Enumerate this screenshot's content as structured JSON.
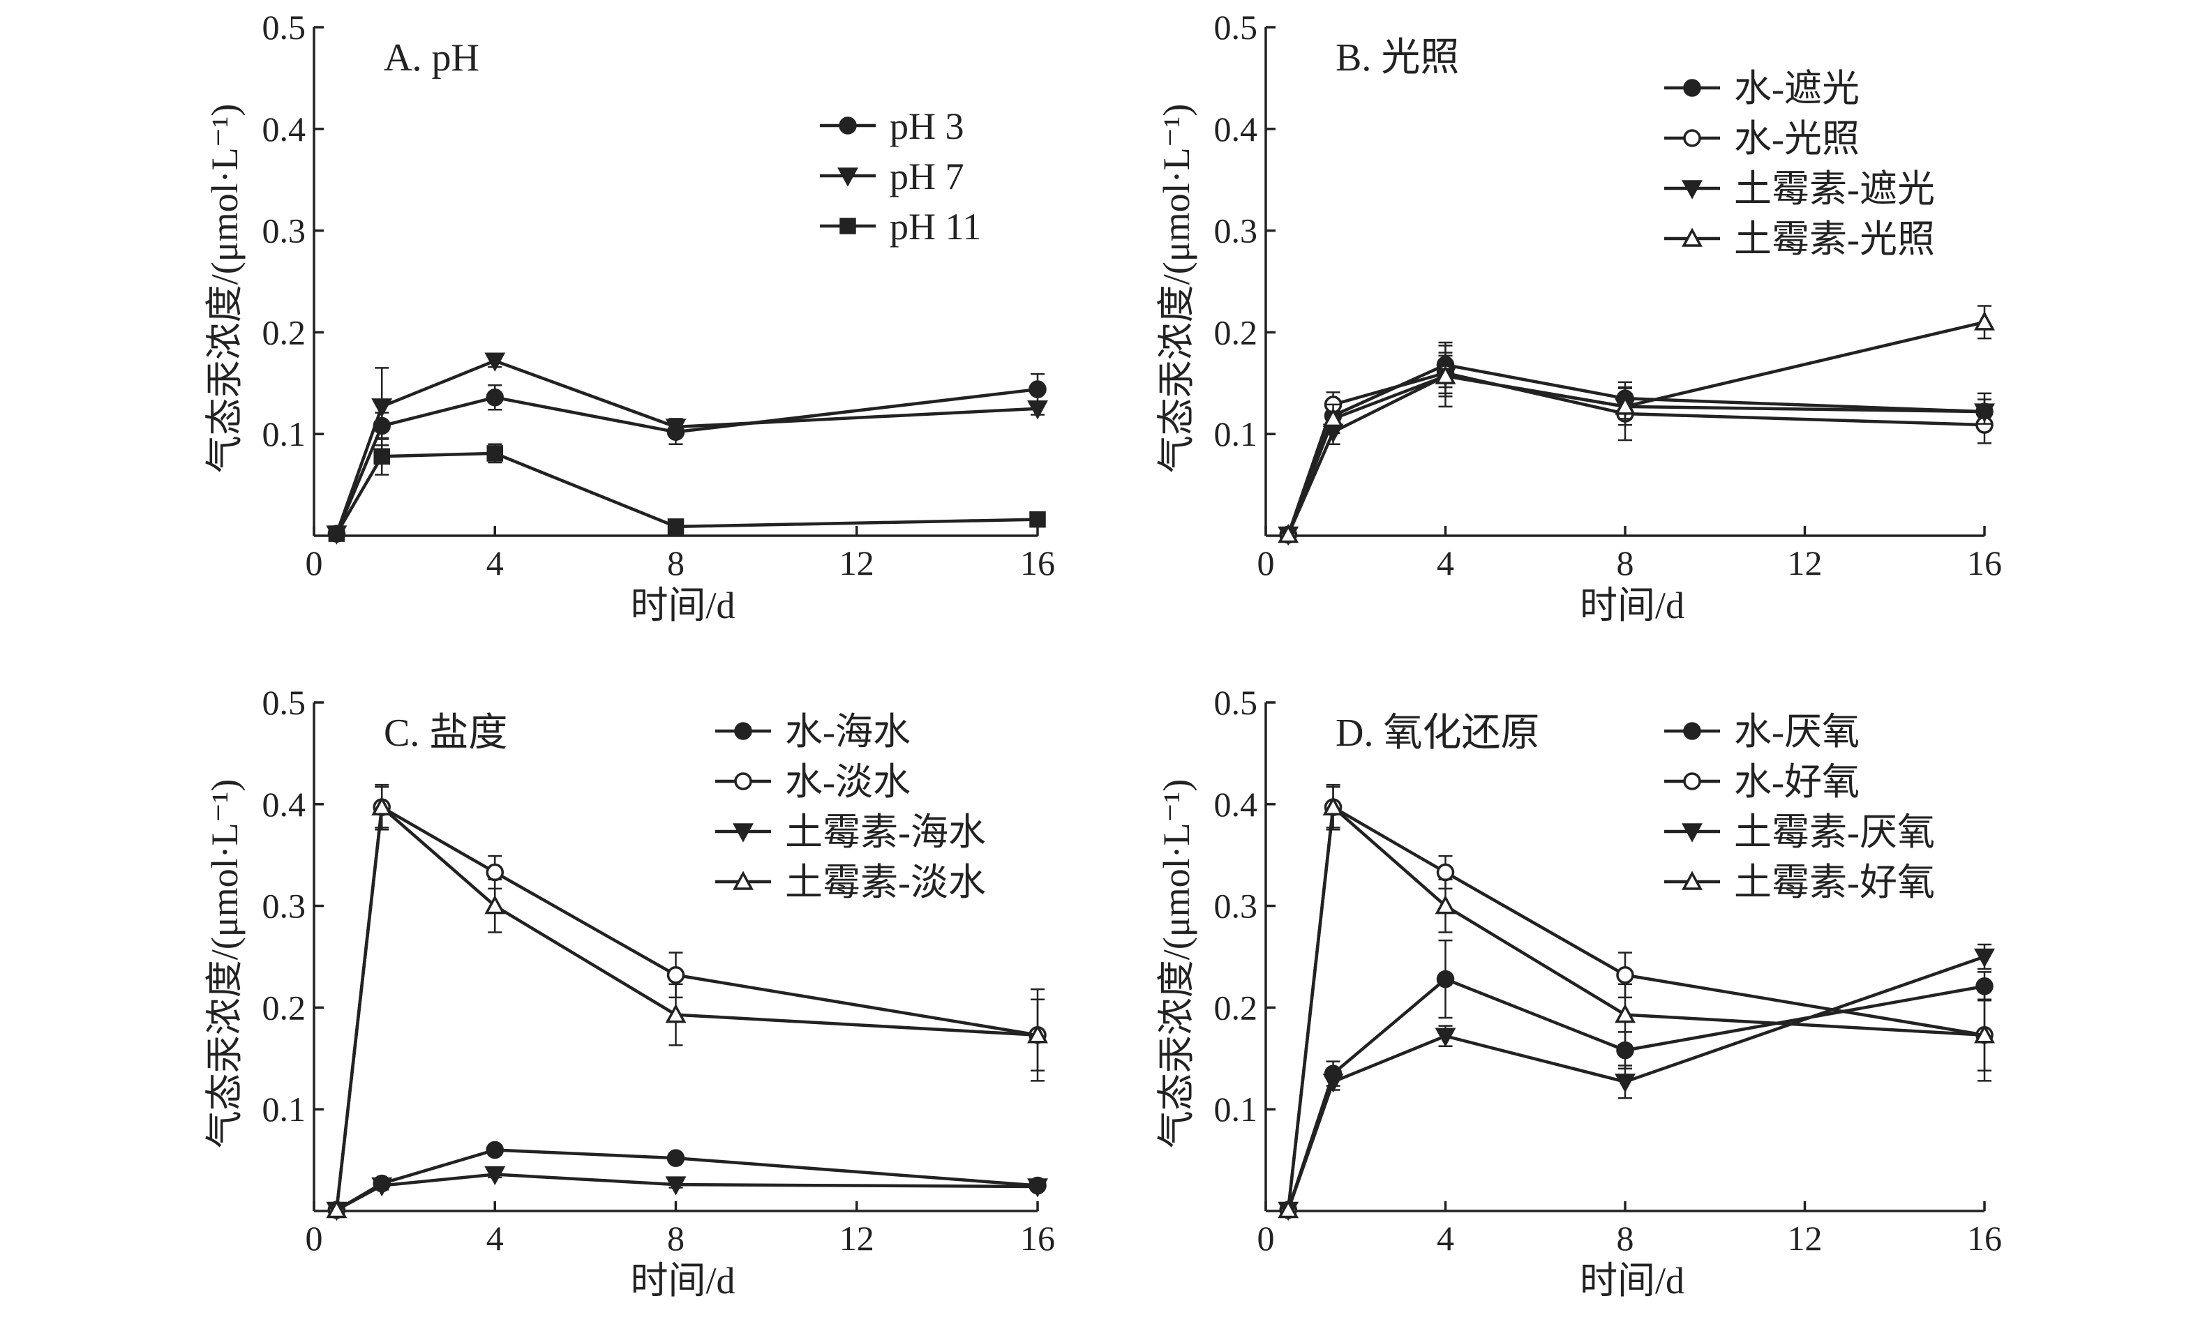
{
  "chart_data": [
    {
      "type": "line",
      "title": "A. pH",
      "xlabel": "时间/d",
      "ylabel": "气态汞浓度/(μmol·L⁻¹)",
      "xlim": [
        0,
        16
      ],
      "ylim": [
        0,
        0.5
      ],
      "xticks": [
        0,
        4,
        8,
        12,
        16
      ],
      "yticks": [
        0.1,
        0.2,
        0.3,
        0.4,
        0.5
      ],
      "legend_position": "top-right",
      "series": [
        {
          "name": "pH 3",
          "marker": "circle-filled",
          "x": [
            0.5,
            1.5,
            4,
            8,
            16
          ],
          "y": [
            0.002,
            0.108,
            0.136,
            0.102,
            0.144
          ],
          "err": [
            0,
            0.013,
            0.012,
            0.012,
            0.015
          ]
        },
        {
          "name": "pH 7",
          "marker": "triangle-down-filled",
          "x": [
            0.5,
            1.5,
            4,
            8,
            16
          ],
          "y": [
            0.002,
            0.127,
            0.172,
            0.107,
            0.125
          ],
          "err": [
            0,
            0.038,
            0.006,
            0.008,
            0.006
          ]
        },
        {
          "name": "pH 11",
          "marker": "square-filled",
          "x": [
            0.5,
            1.5,
            4,
            8,
            16
          ],
          "y": [
            0.002,
            0.078,
            0.081,
            0.009,
            0.016
          ],
          "err": [
            0,
            0.018,
            0.009,
            0.004,
            0.003
          ]
        }
      ]
    },
    {
      "type": "line",
      "title": "B. 光照",
      "xlabel": "时间/d",
      "ylabel": "气态汞浓度/(μmol·L⁻¹)",
      "xlim": [
        0,
        16
      ],
      "ylim": [
        0,
        0.5
      ],
      "xticks": [
        0,
        4,
        8,
        12,
        16
      ],
      "yticks": [
        0.1,
        0.2,
        0.3,
        0.4,
        0.5
      ],
      "legend_position": "top-right",
      "series": [
        {
          "name": "水-遮光",
          "marker": "circle-filled",
          "x": [
            0.5,
            1.5,
            4,
            8,
            16
          ],
          "y": [
            0.001,
            0.118,
            0.168,
            0.135,
            0.122
          ],
          "err": [
            0,
            0.012,
            0.022,
            0.016,
            0.018
          ]
        },
        {
          "name": "水-光照",
          "marker": "circle-open",
          "x": [
            0.5,
            1.5,
            4,
            8,
            16
          ],
          "y": [
            0.001,
            0.129,
            0.16,
            0.12,
            0.109
          ],
          "err": [
            0,
            0.012,
            0.02,
            0.026,
            0.018
          ]
        },
        {
          "name": "土霉素-遮光",
          "marker": "triangle-down-filled",
          "x": [
            0.5,
            1.5,
            4,
            8,
            16
          ],
          "y": [
            0.001,
            0.102,
            0.157,
            0.127,
            0.122
          ],
          "err": [
            0,
            0.012,
            0.02,
            0.012,
            0.012
          ]
        },
        {
          "name": "土霉素-光照",
          "marker": "triangle-up-open",
          "x": [
            0.5,
            1.5,
            4,
            8,
            16
          ],
          "y": [
            0.001,
            0.115,
            0.157,
            0.127,
            0.21
          ],
          "err": [
            0,
            0.014,
            0.03,
            0.018,
            0.016
          ]
        }
      ]
    },
    {
      "type": "line",
      "title": "C. 盐度",
      "xlabel": "时间/d",
      "ylabel": "气态汞浓度/(μmol·L⁻¹)",
      "xlim": [
        0,
        16
      ],
      "ylim": [
        0,
        0.5
      ],
      "xticks": [
        0,
        4,
        8,
        12,
        16
      ],
      "yticks": [
        0.1,
        0.2,
        0.3,
        0.4,
        0.5
      ],
      "legend_position": "top-right",
      "series": [
        {
          "name": "水-海水",
          "marker": "circle-filled",
          "x": [
            0.5,
            1.5,
            4,
            8,
            16
          ],
          "y": [
            0.001,
            0.027,
            0.06,
            0.052,
            0.025
          ],
          "err": [
            0,
            0.004,
            0.005,
            0.005,
            0.004
          ]
        },
        {
          "name": "水-淡水",
          "marker": "circle-open",
          "x": [
            0.5,
            1.5,
            4,
            8,
            16
          ],
          "y": [
            0.001,
            0.397,
            0.333,
            0.232,
            0.173
          ],
          "err": [
            0,
            0.02,
            0.016,
            0.022,
            0.045
          ]
        },
        {
          "name": "土霉素-海水",
          "marker": "triangle-down-filled",
          "x": [
            0.5,
            1.5,
            4,
            8,
            16
          ],
          "y": [
            0.001,
            0.025,
            0.036,
            0.026,
            0.024
          ],
          "err": [
            0,
            0.004,
            0.003,
            0.003,
            0.003
          ]
        },
        {
          "name": "土霉素-淡水",
          "marker": "triangle-up-open",
          "x": [
            0.5,
            1.5,
            4,
            8,
            16
          ],
          "y": [
            0.001,
            0.397,
            0.3,
            0.193,
            0.173
          ],
          "err": [
            0,
            0.022,
            0.026,
            0.03,
            0.035
          ]
        }
      ]
    },
    {
      "type": "line",
      "title": "D. 氧化还原",
      "xlabel": "时间/d",
      "ylabel": "气态汞浓度/(μmol·L⁻¹)",
      "xlim": [
        0,
        16
      ],
      "ylim": [
        0,
        0.5
      ],
      "xticks": [
        0,
        4,
        8,
        12,
        16
      ],
      "yticks": [
        0.1,
        0.2,
        0.3,
        0.4,
        0.5
      ],
      "legend_position": "top-right",
      "series": [
        {
          "name": "水-厌氧",
          "marker": "circle-filled",
          "x": [
            0.5,
            1.5,
            4,
            8,
            16
          ],
          "y": [
            0.001,
            0.135,
            0.228,
            0.158,
            0.221
          ],
          "err": [
            0,
            0.012,
            0.038,
            0.018,
            0.014
          ]
        },
        {
          "name": "水-好氧",
          "marker": "circle-open",
          "x": [
            0.5,
            1.5,
            4,
            8,
            16
          ],
          "y": [
            0.001,
            0.397,
            0.333,
            0.232,
            0.173
          ],
          "err": [
            0,
            0.02,
            0.016,
            0.022,
            0.045
          ]
        },
        {
          "name": "土霉素-厌氧",
          "marker": "triangle-down-filled",
          "x": [
            0.5,
            1.5,
            4,
            8,
            16
          ],
          "y": [
            0.001,
            0.127,
            0.172,
            0.127,
            0.25
          ],
          "err": [
            0,
            0.008,
            0.01,
            0.016,
            0.012
          ]
        },
        {
          "name": "土霉素-好氧",
          "marker": "triangle-up-open",
          "x": [
            0.5,
            1.5,
            4,
            8,
            16
          ],
          "y": [
            0.001,
            0.397,
            0.3,
            0.193,
            0.173
          ],
          "err": [
            0,
            0.022,
            0.026,
            0.03,
            0.035
          ]
        }
      ]
    }
  ]
}
